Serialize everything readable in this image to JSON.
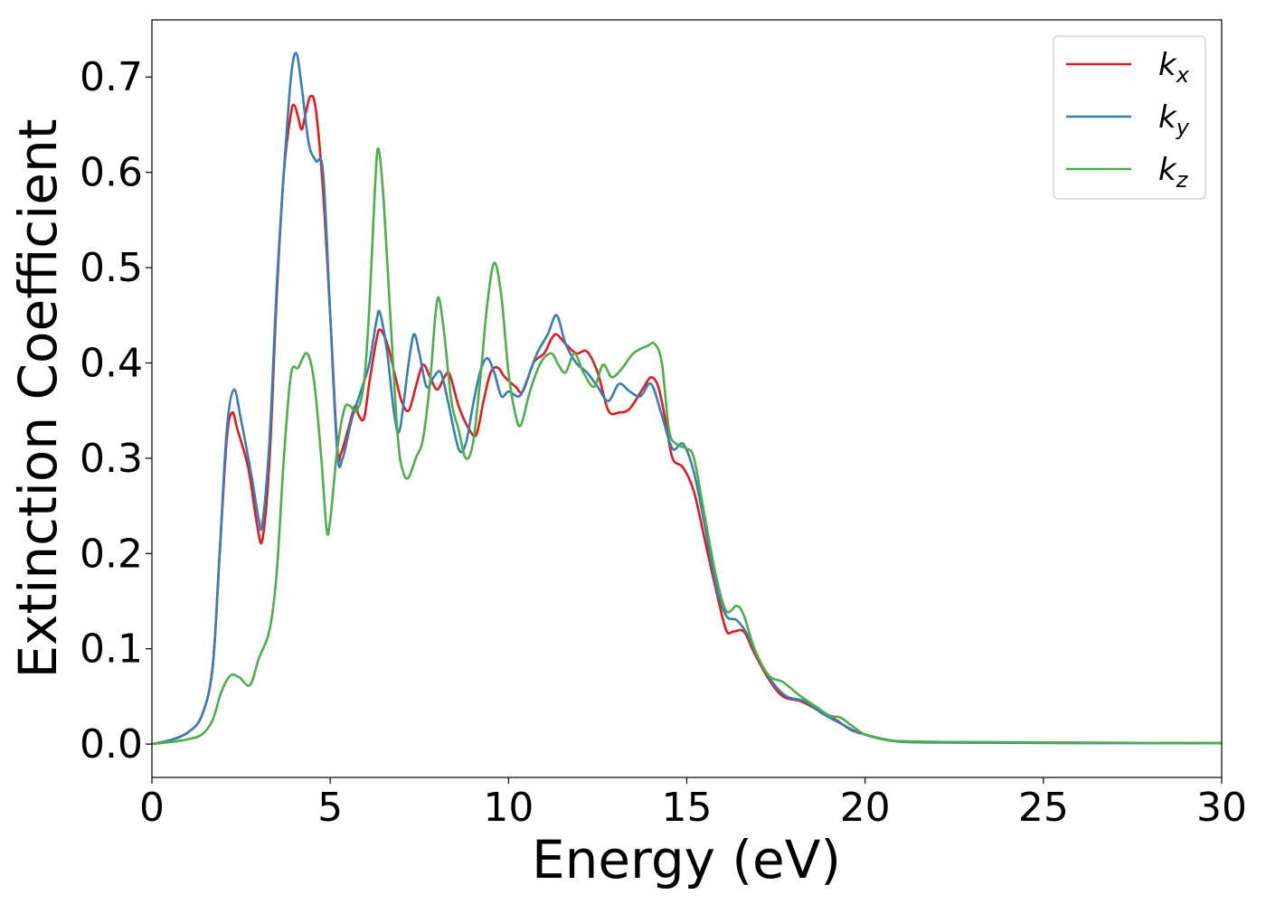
{
  "chart_data": {
    "type": "line",
    "title": "",
    "xlabel": "Energy (eV)",
    "ylabel": "Extinction Coefficient",
    "xlim": [
      0,
      30
    ],
    "ylim": [
      -0.035,
      0.76
    ],
    "xticks": [
      "0",
      "5",
      "10",
      "15",
      "20",
      "25",
      "30"
    ],
    "yticks": [
      "0.0",
      "0.1",
      "0.2",
      "0.3",
      "0.4",
      "0.5",
      "0.6",
      "0.7"
    ],
    "grid": false,
    "legend_position": "top-right",
    "series": [
      {
        "name": "k",
        "subscript": "x",
        "color": "#e41a1c",
        "points": [
          [
            0,
            0.0
          ],
          [
            0.5,
            0.004
          ],
          [
            1.0,
            0.012
          ],
          [
            1.4,
            0.03
          ],
          [
            1.7,
            0.08
          ],
          [
            1.9,
            0.2
          ],
          [
            2.1,
            0.32
          ],
          [
            2.25,
            0.348
          ],
          [
            2.4,
            0.33
          ],
          [
            2.7,
            0.29
          ],
          [
            2.95,
            0.23
          ],
          [
            3.1,
            0.215
          ],
          [
            3.3,
            0.3
          ],
          [
            3.5,
            0.47
          ],
          [
            3.7,
            0.6
          ],
          [
            3.9,
            0.662
          ],
          [
            4.0,
            0.67
          ],
          [
            4.1,
            0.658
          ],
          [
            4.2,
            0.645
          ],
          [
            4.3,
            0.66
          ],
          [
            4.45,
            0.68
          ],
          [
            4.6,
            0.665
          ],
          [
            4.8,
            0.58
          ],
          [
            5.0,
            0.45
          ],
          [
            5.2,
            0.31
          ],
          [
            5.3,
            0.305
          ],
          [
            5.5,
            0.33
          ],
          [
            5.7,
            0.355
          ],
          [
            5.8,
            0.345
          ],
          [
            5.95,
            0.342
          ],
          [
            6.1,
            0.38
          ],
          [
            6.3,
            0.425
          ],
          [
            6.4,
            0.435
          ],
          [
            6.6,
            0.42
          ],
          [
            6.8,
            0.39
          ],
          [
            7.0,
            0.36
          ],
          [
            7.2,
            0.35
          ],
          [
            7.4,
            0.375
          ],
          [
            7.6,
            0.398
          ],
          [
            7.8,
            0.385
          ],
          [
            8.0,
            0.372
          ],
          [
            8.2,
            0.385
          ],
          [
            8.35,
            0.388
          ],
          [
            8.6,
            0.355
          ],
          [
            8.9,
            0.33
          ],
          [
            9.1,
            0.325
          ],
          [
            9.3,
            0.36
          ],
          [
            9.5,
            0.39
          ],
          [
            9.7,
            0.395
          ],
          [
            9.9,
            0.385
          ],
          [
            10.2,
            0.375
          ],
          [
            10.4,
            0.37
          ],
          [
            10.7,
            0.4
          ],
          [
            11.0,
            0.41
          ],
          [
            11.2,
            0.425
          ],
          [
            11.35,
            0.43
          ],
          [
            11.6,
            0.42
          ],
          [
            11.9,
            0.41
          ],
          [
            12.2,
            0.412
          ],
          [
            12.5,
            0.39
          ],
          [
            12.8,
            0.35
          ],
          [
            13.1,
            0.348
          ],
          [
            13.4,
            0.352
          ],
          [
            13.8,
            0.375
          ],
          [
            14.0,
            0.385
          ],
          [
            14.2,
            0.375
          ],
          [
            14.4,
            0.34
          ],
          [
            14.6,
            0.3
          ],
          [
            14.9,
            0.29
          ],
          [
            15.2,
            0.265
          ],
          [
            15.5,
            0.215
          ],
          [
            15.8,
            0.165
          ],
          [
            16.1,
            0.12
          ],
          [
            16.3,
            0.118
          ],
          [
            16.6,
            0.118
          ],
          [
            16.9,
            0.095
          ],
          [
            17.3,
            0.068
          ],
          [
            17.7,
            0.05
          ],
          [
            18.2,
            0.045
          ],
          [
            18.7,
            0.035
          ],
          [
            19.2,
            0.025
          ],
          [
            19.6,
            0.015
          ],
          [
            20.0,
            0.01
          ],
          [
            20.5,
            0.005
          ],
          [
            21.0,
            0.003
          ],
          [
            23.0,
            0.002
          ],
          [
            26.0,
            0.0015
          ],
          [
            30.0,
            0.001
          ]
        ]
      },
      {
        "name": "k",
        "subscript": "y",
        "color": "#377eb8",
        "points": [
          [
            0,
            0.0
          ],
          [
            0.5,
            0.004
          ],
          [
            1.0,
            0.012
          ],
          [
            1.4,
            0.03
          ],
          [
            1.7,
            0.08
          ],
          [
            1.9,
            0.2
          ],
          [
            2.1,
            0.33
          ],
          [
            2.3,
            0.372
          ],
          [
            2.5,
            0.34
          ],
          [
            2.8,
            0.28
          ],
          [
            3.0,
            0.235
          ],
          [
            3.1,
            0.232
          ],
          [
            3.3,
            0.32
          ],
          [
            3.5,
            0.48
          ],
          [
            3.7,
            0.6
          ],
          [
            3.9,
            0.7
          ],
          [
            4.05,
            0.725
          ],
          [
            4.2,
            0.69
          ],
          [
            4.4,
            0.63
          ],
          [
            4.6,
            0.612
          ],
          [
            4.8,
            0.6
          ],
          [
            5.0,
            0.45
          ],
          [
            5.2,
            0.305
          ],
          [
            5.35,
            0.3
          ],
          [
            5.6,
            0.34
          ],
          [
            5.9,
            0.375
          ],
          [
            6.1,
            0.4
          ],
          [
            6.3,
            0.445
          ],
          [
            6.4,
            0.452
          ],
          [
            6.6,
            0.41
          ],
          [
            6.8,
            0.345
          ],
          [
            6.95,
            0.33
          ],
          [
            7.2,
            0.4
          ],
          [
            7.35,
            0.43
          ],
          [
            7.5,
            0.41
          ],
          [
            7.7,
            0.375
          ],
          [
            7.9,
            0.385
          ],
          [
            8.1,
            0.39
          ],
          [
            8.3,
            0.36
          ],
          [
            8.6,
            0.31
          ],
          [
            8.8,
            0.315
          ],
          [
            9.0,
            0.355
          ],
          [
            9.2,
            0.39
          ],
          [
            9.4,
            0.405
          ],
          [
            9.6,
            0.39
          ],
          [
            9.8,
            0.365
          ],
          [
            10.0,
            0.37
          ],
          [
            10.3,
            0.365
          ],
          [
            10.5,
            0.38
          ],
          [
            10.8,
            0.41
          ],
          [
            11.1,
            0.43
          ],
          [
            11.35,
            0.45
          ],
          [
            11.6,
            0.42
          ],
          [
            11.9,
            0.4
          ],
          [
            12.2,
            0.39
          ],
          [
            12.5,
            0.375
          ],
          [
            12.8,
            0.36
          ],
          [
            13.1,
            0.378
          ],
          [
            13.4,
            0.37
          ],
          [
            13.7,
            0.365
          ],
          [
            14.0,
            0.378
          ],
          [
            14.3,
            0.345
          ],
          [
            14.6,
            0.31
          ],
          [
            14.9,
            0.315
          ],
          [
            15.2,
            0.285
          ],
          [
            15.5,
            0.23
          ],
          [
            15.8,
            0.17
          ],
          [
            16.1,
            0.135
          ],
          [
            16.4,
            0.13
          ],
          [
            16.7,
            0.115
          ],
          [
            17.0,
            0.09
          ],
          [
            17.4,
            0.065
          ],
          [
            17.8,
            0.05
          ],
          [
            18.3,
            0.045
          ],
          [
            18.8,
            0.032
          ],
          [
            19.3,
            0.022
          ],
          [
            19.7,
            0.014
          ],
          [
            20.2,
            0.008
          ],
          [
            20.7,
            0.004
          ],
          [
            21.2,
            0.002
          ],
          [
            23.0,
            0.0015
          ],
          [
            26.0,
            0.001
          ],
          [
            30.0,
            0.001
          ]
        ]
      },
      {
        "name": "k",
        "subscript": "z",
        "color": "#4daf4a",
        "points": [
          [
            0,
            0.0
          ],
          [
            0.5,
            0.002
          ],
          [
            1.0,
            0.005
          ],
          [
            1.4,
            0.01
          ],
          [
            1.7,
            0.025
          ],
          [
            1.95,
            0.055
          ],
          [
            2.2,
            0.072
          ],
          [
            2.45,
            0.07
          ],
          [
            2.75,
            0.062
          ],
          [
            3.0,
            0.09
          ],
          [
            3.3,
            0.12
          ],
          [
            3.5,
            0.18
          ],
          [
            3.7,
            0.3
          ],
          [
            3.9,
            0.388
          ],
          [
            4.1,
            0.395
          ],
          [
            4.35,
            0.41
          ],
          [
            4.55,
            0.38
          ],
          [
            4.75,
            0.3
          ],
          [
            4.9,
            0.225
          ],
          [
            5.0,
            0.235
          ],
          [
            5.2,
            0.31
          ],
          [
            5.4,
            0.352
          ],
          [
            5.55,
            0.355
          ],
          [
            5.75,
            0.35
          ],
          [
            5.95,
            0.38
          ],
          [
            6.1,
            0.46
          ],
          [
            6.25,
            0.58
          ],
          [
            6.35,
            0.625
          ],
          [
            6.5,
            0.57
          ],
          [
            6.7,
            0.44
          ],
          [
            6.9,
            0.32
          ],
          [
            7.05,
            0.285
          ],
          [
            7.2,
            0.28
          ],
          [
            7.4,
            0.3
          ],
          [
            7.6,
            0.32
          ],
          [
            7.8,
            0.38
          ],
          [
            7.95,
            0.45
          ],
          [
            8.05,
            0.468
          ],
          [
            8.2,
            0.43
          ],
          [
            8.4,
            0.36
          ],
          [
            8.6,
            0.33
          ],
          [
            8.8,
            0.3
          ],
          [
            9.0,
            0.315
          ],
          [
            9.2,
            0.38
          ],
          [
            9.4,
            0.46
          ],
          [
            9.6,
            0.505
          ],
          [
            9.8,
            0.47
          ],
          [
            10.0,
            0.39
          ],
          [
            10.2,
            0.345
          ],
          [
            10.35,
            0.335
          ],
          [
            10.6,
            0.37
          ],
          [
            10.9,
            0.4
          ],
          [
            11.2,
            0.41
          ],
          [
            11.4,
            0.398
          ],
          [
            11.6,
            0.39
          ],
          [
            11.85,
            0.41
          ],
          [
            12.1,
            0.39
          ],
          [
            12.4,
            0.375
          ],
          [
            12.65,
            0.398
          ],
          [
            12.9,
            0.385
          ],
          [
            13.2,
            0.395
          ],
          [
            13.5,
            0.41
          ],
          [
            13.9,
            0.418
          ],
          [
            14.1,
            0.42
          ],
          [
            14.3,
            0.4
          ],
          [
            14.5,
            0.33
          ],
          [
            14.7,
            0.315
          ],
          [
            15.0,
            0.31
          ],
          [
            15.2,
            0.3
          ],
          [
            15.5,
            0.24
          ],
          [
            15.8,
            0.18
          ],
          [
            16.1,
            0.14
          ],
          [
            16.4,
            0.145
          ],
          [
            16.6,
            0.135
          ],
          [
            16.9,
            0.1
          ],
          [
            17.3,
            0.072
          ],
          [
            17.7,
            0.065
          ],
          [
            18.2,
            0.05
          ],
          [
            18.6,
            0.04
          ],
          [
            19.0,
            0.03
          ],
          [
            19.3,
            0.028
          ],
          [
            19.6,
            0.02
          ],
          [
            20.0,
            0.01
          ],
          [
            20.5,
            0.005
          ],
          [
            21.0,
            0.003
          ],
          [
            23.0,
            0.002
          ],
          [
            26.0,
            0.0015
          ],
          [
            30.0,
            0.001
          ]
        ]
      }
    ]
  }
}
